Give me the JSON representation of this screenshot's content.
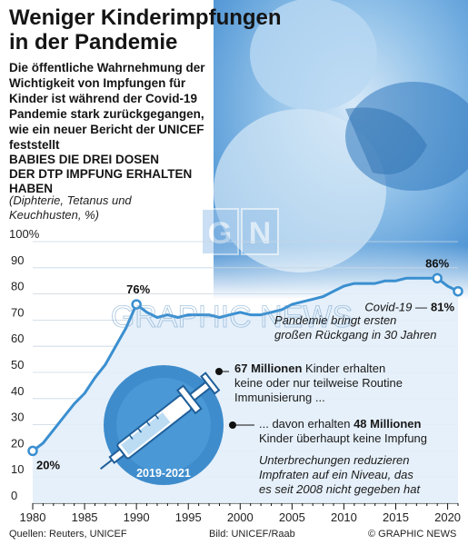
{
  "title_lines": [
    "Weniger Kinderimpfungen",
    "in der Pandemie"
  ],
  "subtitle_lines": [
    "Die öffentliche Wahrnehmung der",
    "Wichtigkeit von Impfungen für",
    "Kinder ist während der Covid-19",
    "Pandemie stark zurückgegangen,",
    "wie ein neuer Bericht der UNICEF",
    "feststellt"
  ],
  "chart_caption_lines": [
    "BABIES DIE DREI DOSEN",
    "DER DTP IMPFUNG ERHALTEN",
    "HABEN"
  ],
  "chart_subcaption_lines": [
    "(Diphterie, Tetanus und",
    "Keuchhusten, %)"
  ],
  "annotations": {
    "label_1980": "20%",
    "label_1990": "76%",
    "label_2019": "86%",
    "covid_label": "Covid-19 —",
    "covid_value": "81%",
    "pandemic_lines": [
      "Pandemie bringt ersten",
      "großen Rückgang in 30 Jahren"
    ],
    "circle_label": "2019-2021",
    "box1_bold": "67 Millionen",
    "box1_rest": " Kinder erhalten",
    "box1_lines": [
      "keine oder nur teilweise Routine",
      "Immunisierung ..."
    ],
    "box2_pre": "... davon erhalten ",
    "box2_bold": "48 Millionen",
    "box2_line2": "Kinder überhaupt keine Impfung",
    "interrupt_lines": [
      "Unterbrechungen reduzieren",
      "Impfraten auf ein Niveau, das",
      "es seit 2008 nicht gegeben hat"
    ]
  },
  "watermark": "GRAPHIC NEWS",
  "footer": {
    "source": "Quellen: Reuters, UNICEF",
    "credit": "Bild: UNICEF/Raab",
    "copyright": "© GRAPHIC NEWS"
  },
  "colors": {
    "line": "#3a8fd0",
    "area_fill": "#e3eef9",
    "photo_blue": "#5aa0dc",
    "circle_fill": "#3e8ccc",
    "circle_inner": "#2f7fc0"
  },
  "chart_data": {
    "type": "area",
    "title": "BABIES DIE DREI DOSEN DER DTP IMPFUNG ERHALTEN HABEN",
    "subtitle": "(Diphterie, Tetanus und Keuchhusten, %)",
    "ylabel": "%",
    "ylim": [
      0,
      100
    ],
    "yticks": [
      0,
      10,
      20,
      30,
      40,
      50,
      60,
      70,
      80,
      90,
      100
    ],
    "ytick_labels": [
      "0",
      "10",
      "20",
      "30",
      "40",
      "50",
      "60",
      "70",
      "80",
      "90",
      "100%"
    ],
    "xlim": [
      1980,
      2021
    ],
    "xticks": [
      1980,
      1985,
      1990,
      1995,
      2000,
      2005,
      2010,
      2015,
      2020
    ],
    "grid": true,
    "x": [
      1980,
      1981,
      1982,
      1983,
      1984,
      1985,
      1986,
      1987,
      1988,
      1989,
      1990,
      1991,
      1992,
      1993,
      1994,
      1995,
      1996,
      1997,
      1998,
      1999,
      2000,
      2001,
      2002,
      2003,
      2004,
      2005,
      2006,
      2007,
      2008,
      2009,
      2010,
      2011,
      2012,
      2013,
      2014,
      2015,
      2016,
      2017,
      2018,
      2019,
      2020,
      2021
    ],
    "series": [
      {
        "values": [
          20,
          23,
          28,
          33,
          38,
          42,
          48,
          53,
          60,
          67,
          76,
          73,
          71,
          72,
          71,
          72,
          72,
          72,
          71,
          72,
          73,
          72,
          72,
          73,
          74,
          76,
          77,
          78,
          79,
          81,
          83,
          84,
          84,
          84,
          85,
          85,
          86,
          86,
          86,
          86,
          83,
          81
        ]
      }
    ],
    "point_labels": [
      {
        "x": 1980,
        "y": 20,
        "text": "20%"
      },
      {
        "x": 1990,
        "y": 76,
        "text": "76%"
      },
      {
        "x": 2019,
        "y": 86,
        "text": "86%"
      },
      {
        "x": 2021,
        "y": 81,
        "text": "81%"
      }
    ]
  }
}
